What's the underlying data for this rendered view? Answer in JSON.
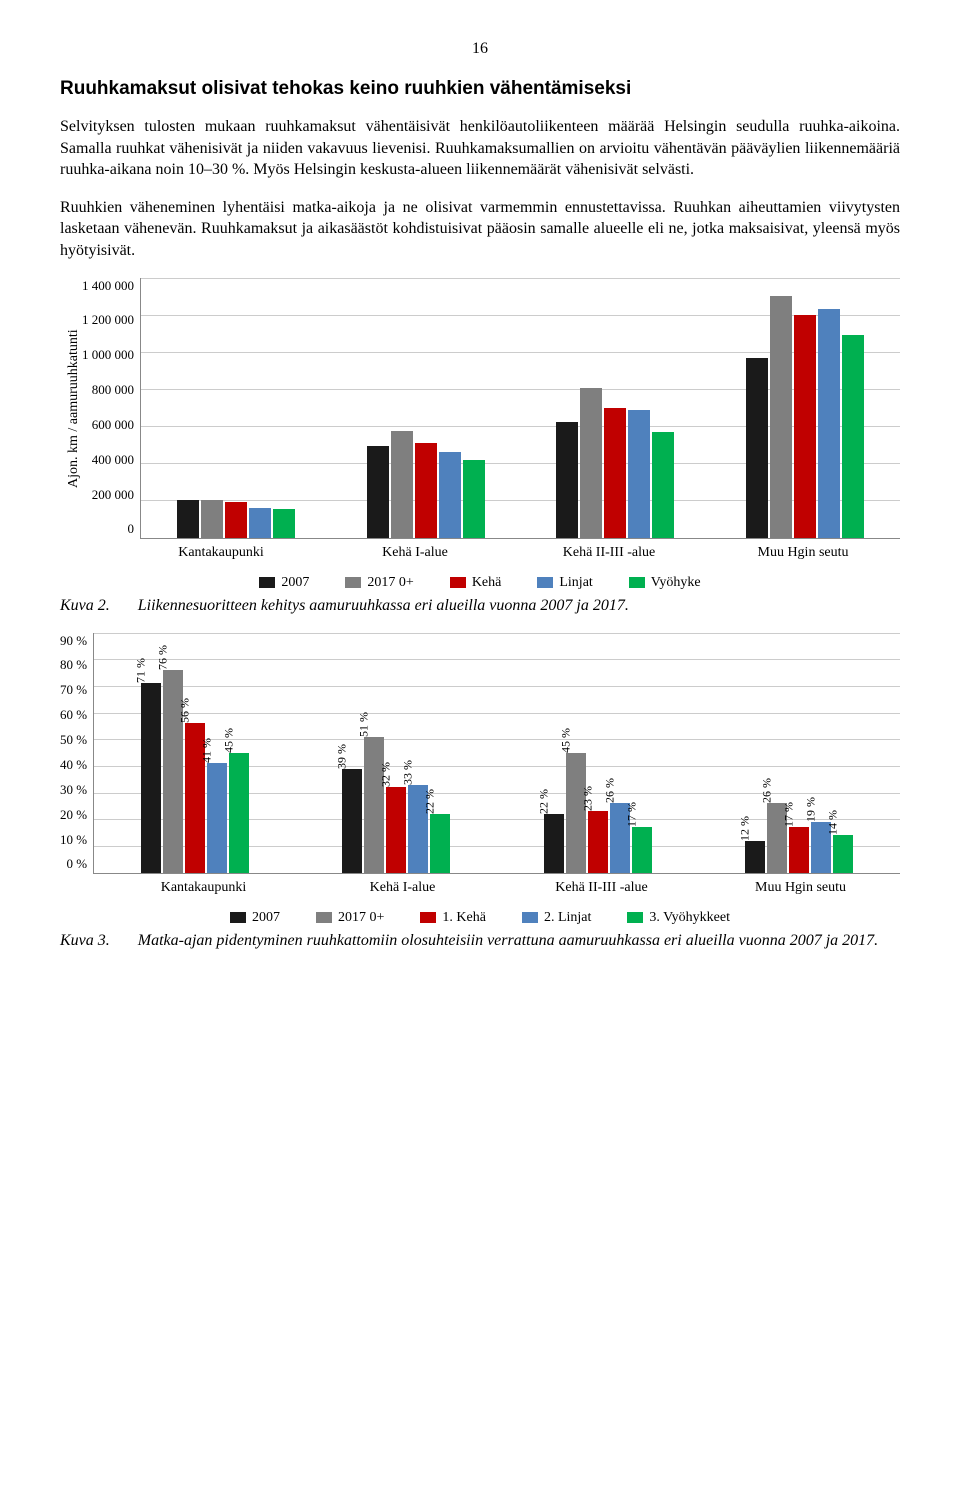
{
  "page_number": "16",
  "heading": "Ruuhkamaksut olisivat tehokas keino ruuhkien vähentämiseksi",
  "paragraph1": "Selvityksen tulosten mukaan ruuhkamaksut vähentäisivät henkilöautoliikenteen määrää Helsingin seudulla ruuhka-aikoina. Samalla ruuhkat vähenisivät ja niiden vakavuus lievenisi. Ruuhkamaksumallien on arvioitu vähentävän pääväylien liikennemääriä ruuhka-aikana noin 10–30 %. Myös Helsingin keskusta-alueen liikennemäärät vähenisivät selvästi.",
  "paragraph2": "Ruuhkien väheneminen lyhentäisi matka-aikoja ja ne olisivat varmemmin ennustettavissa. Ruuhkan aiheuttamien viivytysten lasketaan vähenevän. Ruuhkamaksut ja aikasäästöt kohdistuisivat pääosin samalle alueelle eli ne, jotka maksaisivat, yleensä myös hyötyisivät.",
  "chart1": {
    "type": "bar",
    "ylabel": "Ajon. km / aamuruuhkatunti",
    "ymax": 1400000,
    "ytick_step": 200000,
    "yticks": [
      "1 400 000",
      "1 200 000",
      "1 000 000",
      "800 000",
      "600 000",
      "400 000",
      "200 000",
      "0"
    ],
    "categories": [
      "Kantakaupunki",
      "Kehä I-alue",
      "Kehä II-III -alue",
      "Muu Hgin seutu"
    ],
    "series_labels": [
      "2007",
      "2017 0+",
      "Kehä",
      "Linjat",
      "Vyöhyke"
    ],
    "series_colors": [
      "#1a1a1a",
      "#7f7f7f",
      "#c00000",
      "#4f81bd",
      "#00b050"
    ],
    "values": [
      [
        200000,
        205000,
        190000,
        160000,
        155000
      ],
      [
        495000,
        575000,
        510000,
        460000,
        420000
      ],
      [
        620000,
        805000,
        700000,
        685000,
        570000
      ],
      [
        965000,
        1300000,
        1200000,
        1230000,
        1090000
      ]
    ],
    "grid_color": "#cccccc",
    "background_color": "#ffffff"
  },
  "caption1": {
    "label": "Kuva 2.",
    "text": "Liikennesuoritteen kehitys aamuruuhkassa eri alueilla vuonna 2007 ja 2017."
  },
  "chart2": {
    "type": "bar",
    "ymax": 90,
    "ytick_step": 10,
    "yticks": [
      "90 %",
      "80 %",
      "70 %",
      "60 %",
      "50 %",
      "40 %",
      "30 %",
      "20 %",
      "10 %",
      "0 %"
    ],
    "categories": [
      "Kantakaupunki",
      "Kehä I-alue",
      "Kehä II-III -alue",
      "Muu Hgin seutu"
    ],
    "series_labels": [
      "2007",
      "2017 0+",
      "1. Kehä",
      "2. Linjat",
      "3. Vyöhykkeet"
    ],
    "series_colors": [
      "#1a1a1a",
      "#7f7f7f",
      "#c00000",
      "#4f81bd",
      "#00b050"
    ],
    "values": [
      [
        71,
        76,
        56,
        41,
        45
      ],
      [
        39,
        51,
        32,
        33,
        22
      ],
      [
        22,
        45,
        23,
        26,
        17
      ],
      [
        12,
        26,
        17,
        19,
        14
      ]
    ],
    "value_labels": [
      [
        "71 %",
        "76 %",
        "56 %",
        "41 %",
        "45 %"
      ],
      [
        "39 %",
        "51 %",
        "32 %",
        "33 %",
        "22 %"
      ],
      [
        "22 %",
        "45 %",
        "23 %",
        "26 %",
        "17 %"
      ],
      [
        "12 %",
        "26 %",
        "17 %",
        "19 %",
        "14 %"
      ]
    ],
    "grid_color": "#cccccc",
    "background_color": "#ffffff"
  },
  "caption2": {
    "label": "Kuva 3.",
    "text": "Matka-ajan pidentyminen ruuhkattomiin olosuhteisiin verrattuna aamuruuhkassa eri alueilla vuonna 2007 ja 2017."
  }
}
